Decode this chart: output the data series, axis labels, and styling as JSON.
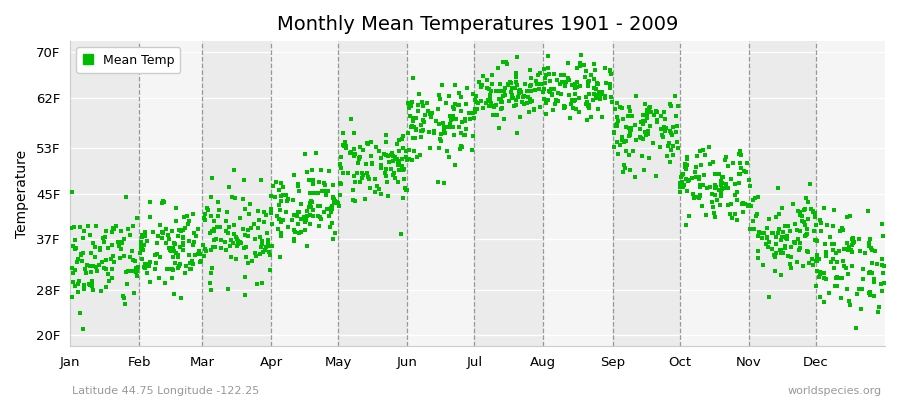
{
  "title": "Monthly Mean Temperatures 1901 - 2009",
  "ylabel": "Temperature",
  "xlabel_labels": [
    "Jan",
    "Feb",
    "Mar",
    "Apr",
    "May",
    "Jun",
    "Jul",
    "Aug",
    "Sep",
    "Oct",
    "Nov",
    "Dec"
  ],
  "ytick_labels": [
    "20F",
    "28F",
    "37F",
    "45F",
    "53F",
    "62F",
    "70F"
  ],
  "ytick_values": [
    20,
    28,
    37,
    45,
    53,
    62,
    70
  ],
  "ylim": [
    18,
    72
  ],
  "legend_label": "Mean Temp",
  "dot_color": "#00bb00",
  "subtitle": "Latitude 44.75 Longitude -122.25",
  "watermark": "worldspecies.org",
  "monthly_means": [
    33,
    35,
    38,
    43,
    50,
    57,
    63,
    63,
    56,
    47,
    38,
    33
  ],
  "monthly_stds": [
    4.5,
    4.0,
    4.0,
    3.5,
    3.5,
    3.5,
    2.5,
    2.5,
    3.5,
    3.5,
    4.0,
    4.5
  ],
  "n_years": 109,
  "seed": 42,
  "band_colors": [
    "#ebebeb",
    "#f5f5f5"
  ],
  "grid_color": "#ffffff",
  "vline_color": "#888888",
  "figsize": [
    9.0,
    4.0
  ],
  "dpi": 100
}
